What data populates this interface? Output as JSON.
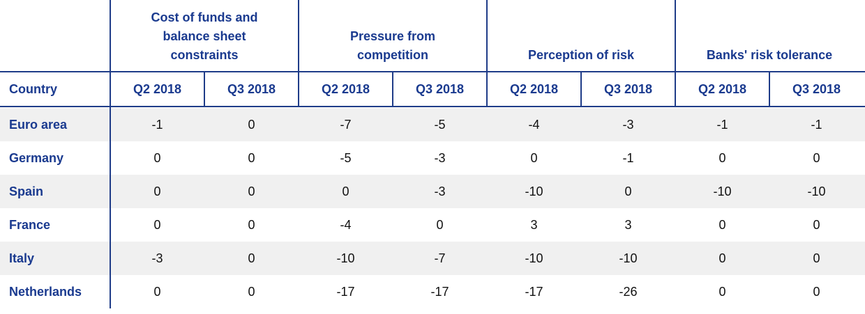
{
  "header": {
    "country": "Country",
    "groups": [
      "Cost of funds and balance sheet constraints",
      "Pressure from competition",
      "Perception of risk",
      "Banks' risk tolerance"
    ],
    "columns": [
      "Q2 2018",
      "Q3 2018",
      "Q2 2018",
      "Q3 2018",
      "Q2 2018",
      "Q3 2018",
      "Q2 2018",
      "Q3 2018"
    ]
  },
  "rows": [
    {
      "country": "Euro area",
      "values": [
        -1,
        0,
        -7,
        -5,
        -4,
        -3,
        -1,
        -1
      ]
    },
    {
      "country": "Germany",
      "values": [
        0,
        0,
        -5,
        -3,
        0,
        -1,
        0,
        0
      ]
    },
    {
      "country": "Spain",
      "values": [
        0,
        0,
        0,
        -3,
        -10,
        0,
        -10,
        -10
      ]
    },
    {
      "country": "France",
      "values": [
        0,
        0,
        -4,
        0,
        3,
        3,
        0,
        0
      ]
    },
    {
      "country": "Italy",
      "values": [
        -3,
        0,
        -10,
        -7,
        -10,
        -10,
        0,
        0
      ]
    },
    {
      "country": "Netherlands",
      "values": [
        0,
        0,
        -17,
        -17,
        -17,
        -26,
        0,
        0
      ]
    }
  ]
}
